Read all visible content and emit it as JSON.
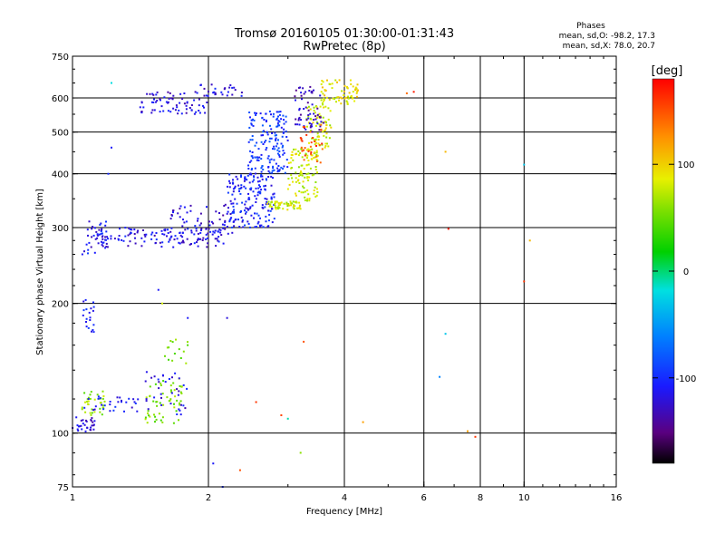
{
  "chart_data": {
    "type": "scatter",
    "title": "Tromsø 20160105 01:30:00-01:31:43",
    "subtitle": "RwPretec (8p)",
    "xlabel": "Frequency [MHz]",
    "ylabel": "Stationary phase Virtual Height [km]",
    "x_scale": "log",
    "y_scale": "log",
    "xlim": [
      1,
      16
    ],
    "ylim": [
      75,
      750
    ],
    "x_ticks": [
      "1",
      "2",
      "4",
      "6",
      "8",
      "10",
      "16"
    ],
    "y_ticks": [
      "75",
      "100",
      "200",
      "300",
      "400",
      "500",
      "600",
      "750"
    ],
    "grid": true,
    "phase_info": {
      "heading": "Phases",
      "line1": "mean, sd,O:  -98.2, 17.3",
      "line2": "mean, sd,X:  78.0, 20.7"
    },
    "colorbar": {
      "label": "[deg]",
      "range": [
        -180,
        180
      ],
      "ticks": [
        "100",
        "0",
        "-100"
      ]
    },
    "series_clusters": [
      {
        "f": [
          1.0,
          1.12
        ],
        "h": [
          100,
          110
        ],
        "phase": -120,
        "n": 30
      },
      {
        "f": [
          1.05,
          1.2
        ],
        "h": [
          110,
          125
        ],
        "phase": 60,
        "n": 35
      },
      {
        "f": [
          1.05,
          1.4
        ],
        "h": [
          112,
          122
        ],
        "phase": -110,
        "n": 30
      },
      {
        "f": [
          1.45,
          1.75
        ],
        "h": [
          105,
          135
        ],
        "phase": 55,
        "n": 55
      },
      {
        "f": [
          1.45,
          1.8
        ],
        "h": [
          110,
          140
        ],
        "phase": -115,
        "n": 35
      },
      {
        "f": [
          1.6,
          1.8
        ],
        "h": [
          145,
          165
        ],
        "phase": 50,
        "n": 15
      },
      {
        "f": [
          1.05,
          1.12
        ],
        "h": [
          170,
          205
        ],
        "phase": -110,
        "n": 20
      },
      {
        "f": [
          1.05,
          1.2
        ],
        "h": [
          260,
          320
        ],
        "phase": -110,
        "n": 25
      },
      {
        "f": [
          1.1,
          2.2
        ],
        "h": [
          270,
          300
        ],
        "phase": -115,
        "n": 140
      },
      {
        "f": [
          1.65,
          2.3
        ],
        "h": [
          290,
          340
        ],
        "phase": -120,
        "n": 60
      },
      {
        "f": [
          2.2,
          2.8
        ],
        "h": [
          300,
          400
        ],
        "phase": -105,
        "n": 170
      },
      {
        "f": [
          2.45,
          3.0
        ],
        "h": [
          400,
          560
        ],
        "phase": -95,
        "n": 160
      },
      {
        "f": [
          2.7,
          3.2
        ],
        "h": [
          330,
          345
        ],
        "phase": 80,
        "n": 60
      },
      {
        "f": [
          3.0,
          3.5
        ],
        "h": [
          345,
          460
        ],
        "phase": 80,
        "n": 110
      },
      {
        "f": [
          3.3,
          3.75
        ],
        "h": [
          460,
          580
        ],
        "phase": 80,
        "n": 70
      },
      {
        "f": [
          3.1,
          3.6
        ],
        "h": [
          500,
          640
        ],
        "phase": -130,
        "n": 60
      },
      {
        "f": [
          3.2,
          3.6
        ],
        "h": [
          420,
          520
        ],
        "phase": 150,
        "n": 30
      },
      {
        "f": [
          3.5,
          4.3
        ],
        "h": [
          580,
          660
        ],
        "phase": 90,
        "n": 70
      },
      {
        "f": [
          1.4,
          2.0
        ],
        "h": [
          550,
          620
        ],
        "phase": -120,
        "n": 75
      },
      {
        "f": [
          1.9,
          2.4
        ],
        "h": [
          600,
          650
        ],
        "phase": -115,
        "n": 25
      }
    ],
    "outliers": [
      {
        "f": 1.22,
        "h": 650,
        "phase": -20
      },
      {
        "f": 1.22,
        "h": 460,
        "phase": -110
      },
      {
        "f": 1.2,
        "h": 400,
        "phase": -100
      },
      {
        "f": 1.55,
        "h": 215,
        "phase": -110
      },
      {
        "f": 1.58,
        "h": 200,
        "phase": 80
      },
      {
        "f": 1.8,
        "h": 185,
        "phase": -110
      },
      {
        "f": 2.2,
        "h": 185,
        "phase": -120
      },
      {
        "f": 2.05,
        "h": 85,
        "phase": -110
      },
      {
        "f": 2.15,
        "h": 75,
        "phase": -100
      },
      {
        "f": 2.55,
        "h": 118,
        "phase": 160
      },
      {
        "f": 2.35,
        "h": 82,
        "phase": 150
      },
      {
        "f": 2.9,
        "h": 110,
        "phase": 155
      },
      {
        "f": 3.0,
        "h": 108,
        "phase": -10
      },
      {
        "f": 3.2,
        "h": 90,
        "phase": 60
      },
      {
        "f": 3.25,
        "h": 163,
        "phase": 150
      },
      {
        "f": 4.4,
        "h": 106,
        "phase": 120
      },
      {
        "f": 5.5,
        "h": 615,
        "phase": 140
      },
      {
        "f": 5.7,
        "h": 620,
        "phase": 170
      },
      {
        "f": 6.5,
        "h": 135,
        "phase": -60
      },
      {
        "f": 6.7,
        "h": 450,
        "phase": 110
      },
      {
        "f": 6.8,
        "h": 298,
        "phase": 170
      },
      {
        "f": 6.7,
        "h": 170,
        "phase": -30
      },
      {
        "f": 7.5,
        "h": 101,
        "phase": 120
      },
      {
        "f": 7.8,
        "h": 98,
        "phase": 160
      },
      {
        "f": 10.0,
        "h": 420,
        "phase": -30
      },
      {
        "f": 10.0,
        "h": 225,
        "phase": 160
      },
      {
        "f": 10.3,
        "h": 280,
        "phase": 110
      }
    ]
  }
}
